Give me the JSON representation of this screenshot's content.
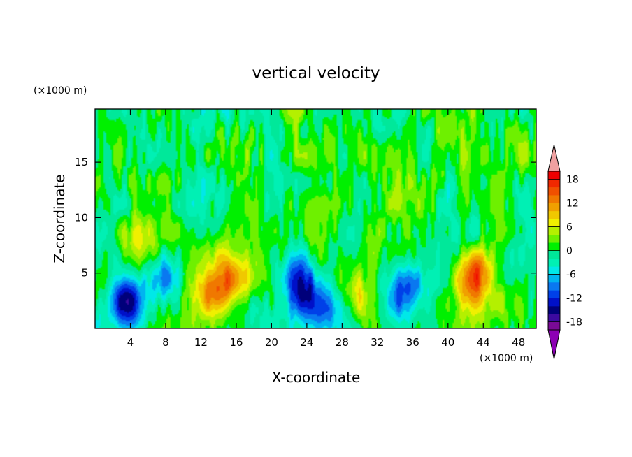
{
  "chart_data": {
    "type": "heatmap",
    "title": "vertical velocity",
    "xlabel": "X-coordinate",
    "ylabel": "Z-coordinate",
    "x_unit_label": "(×1000 m)",
    "y_unit_label": "(×1000 m)",
    "xlim": [
      0,
      50
    ],
    "ylim": [
      0,
      19.8
    ],
    "x_ticks": [
      4,
      8,
      12,
      16,
      20,
      24,
      28,
      32,
      36,
      40,
      44,
      48
    ],
    "y_ticks": [
      5,
      10,
      15
    ],
    "colorbar": {
      "levels": [
        -20,
        -18,
        -16,
        -14,
        -12,
        -10,
        -8,
        -6,
        -4,
        -2,
        0,
        2,
        4,
        6,
        8,
        10,
        12,
        14,
        16,
        18,
        20
      ],
      "tick_labels": [
        "18",
        "12",
        "6",
        "0",
        "-6",
        "-12",
        "-18"
      ],
      "tick_values": [
        18,
        12,
        6,
        0,
        -6,
        -12,
        -18
      ],
      "colors": [
        "#7A0A96",
        "#3C0AA0",
        "#00007A",
        "#0010C8",
        "#0040E8",
        "#0A78F0",
        "#00B4F0",
        "#00E8E8",
        "#00F0B4",
        "#00E89A",
        "#00F000",
        "#6EF000",
        "#B4F000",
        "#F0F000",
        "#F0C800",
        "#F0A000",
        "#F07800",
        "#F05000",
        "#F02800",
        "#F00000"
      ],
      "low_extend_color": "#8C00B4",
      "high_extend_color": "#F0A0A0"
    },
    "features": [
      {
        "x": 3.8,
        "z": 2.3,
        "value": -17
      },
      {
        "x": 7.6,
        "z": 4.6,
        "value": -9
      },
      {
        "x": 13.2,
        "z": 3.0,
        "value": 10
      },
      {
        "x": 15.2,
        "z": 4.6,
        "value": 11
      },
      {
        "x": 23.0,
        "z": 5.0,
        "value": -10
      },
      {
        "x": 23.6,
        "z": 3.0,
        "value": -11
      },
      {
        "x": 26.0,
        "z": 2.0,
        "value": -9
      },
      {
        "x": 30.0,
        "z": 2.6,
        "value": 6
      },
      {
        "x": 34.0,
        "z": 2.4,
        "value": -6
      },
      {
        "x": 36.2,
        "z": 3.8,
        "value": -9
      },
      {
        "x": 43.2,
        "z": 5.4,
        "value": 11
      },
      {
        "x": 42.2,
        "z": 3.6,
        "value": 8
      },
      {
        "x": 46.5,
        "z": 2.6,
        "value": 5
      },
      {
        "x": 4.6,
        "z": 7.8,
        "value": 5
      },
      {
        "x": 18.5,
        "z": 2.0,
        "value": -3
      }
    ]
  }
}
